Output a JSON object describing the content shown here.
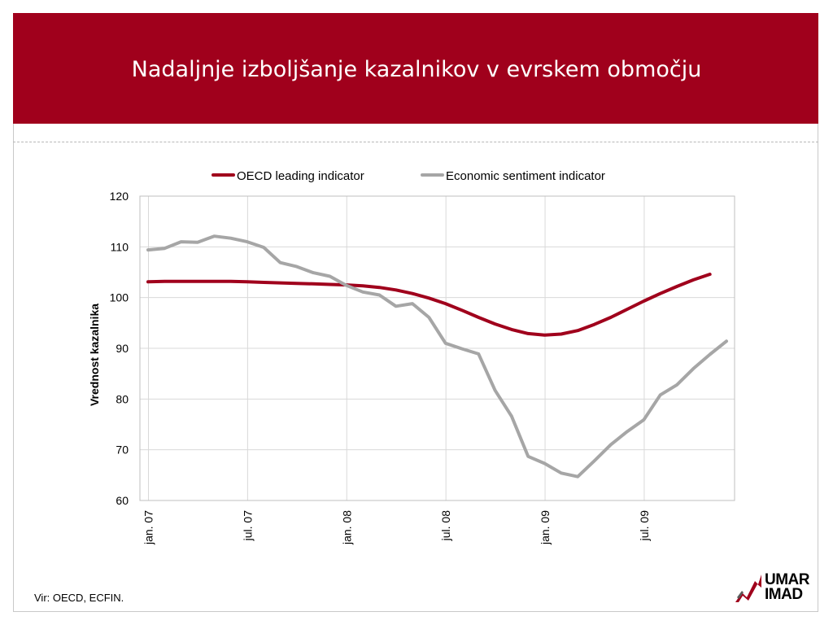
{
  "slide": {
    "title": "Nadaljnje izboljšanje kazalnikov v evrskem območju",
    "source": "Vir: OECD, ECFIN.",
    "logo_line1": "UMAR",
    "logo_line2": "IMAD"
  },
  "colors": {
    "header": "#a0001c",
    "oecd_series": "#a0001c",
    "sentiment_series": "#a6a6a6"
  },
  "chart_data": {
    "type": "line",
    "title": "",
    "xlabel": "",
    "ylabel": "Vrednost kazalnika",
    "ylim": [
      60,
      120
    ],
    "yticks": [
      60,
      70,
      80,
      90,
      100,
      110,
      120
    ],
    "x": [
      "2007-01",
      "2007-02",
      "2007-03",
      "2007-04",
      "2007-05",
      "2007-06",
      "2007-07",
      "2007-08",
      "2007-09",
      "2007-10",
      "2007-11",
      "2007-12",
      "2008-01",
      "2008-02",
      "2008-03",
      "2008-04",
      "2008-05",
      "2008-06",
      "2008-07",
      "2008-08",
      "2008-09",
      "2008-10",
      "2008-11",
      "2008-12",
      "2009-01",
      "2009-02",
      "2009-03",
      "2009-04",
      "2009-05",
      "2009-06",
      "2009-07",
      "2009-08",
      "2009-09",
      "2009-10",
      "2009-11",
      "2009-12"
    ],
    "xtick_labels": [
      {
        "x": "2007-01",
        "label": "jan. 07"
      },
      {
        "x": "2007-07",
        "label": "jul. 07"
      },
      {
        "x": "2008-01",
        "label": "jan. 08"
      },
      {
        "x": "2008-07",
        "label": "jul. 08"
      },
      {
        "x": "2009-01",
        "label": "jan. 09"
      },
      {
        "x": "2009-07",
        "label": "jul. 09"
      }
    ],
    "legend_position": "top",
    "grid": "major horizontal and vertical",
    "series": [
      {
        "name": "OECD leading indicator",
        "values": [
          103.1,
          103.2,
          103.2,
          103.2,
          103.2,
          103.2,
          103.1,
          103.0,
          102.9,
          102.8,
          102.7,
          102.6,
          102.5,
          102.3,
          102.0,
          101.5,
          100.8,
          99.9,
          98.8,
          97.5,
          96.1,
          94.8,
          93.7,
          92.9,
          92.6,
          92.8,
          93.5,
          94.7,
          96.1,
          97.7,
          99.3,
          100.8,
          102.2,
          103.5,
          104.6,
          null
        ],
        "color": "#a0001c"
      },
      {
        "name": "Economic sentiment indicator",
        "values": [
          109.4,
          109.7,
          111.0,
          110.9,
          112.1,
          111.7,
          111.0,
          109.9,
          106.9,
          106.1,
          104.9,
          104.2,
          102.4,
          101.1,
          100.5,
          98.3,
          98.8,
          96.1,
          91.0,
          89.9,
          88.9,
          81.7,
          76.6,
          68.7,
          67.3,
          65.4,
          64.7,
          67.8,
          71.0,
          73.6,
          75.9,
          80.8,
          82.8,
          86.0,
          88.8,
          91.4
        ],
        "color": "#a6a6a6"
      }
    ]
  }
}
